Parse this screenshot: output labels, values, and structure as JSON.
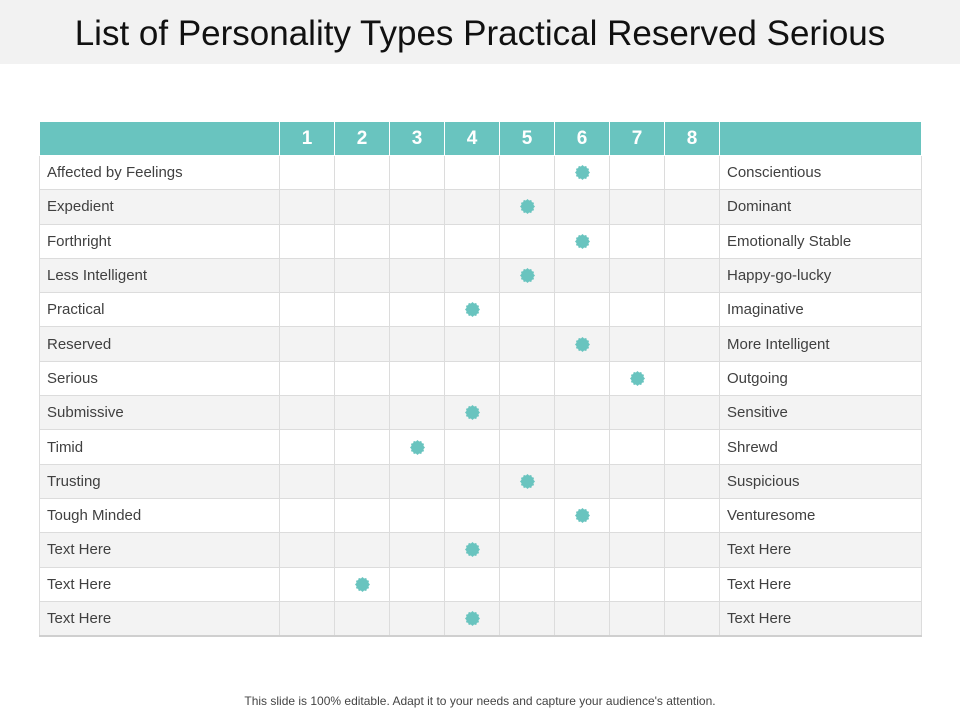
{
  "title": "List of Personality Types Practical Reserved Serious",
  "scale_labels": [
    "1",
    "2",
    "3",
    "4",
    "5",
    "6",
    "7",
    "8"
  ],
  "rows": [
    {
      "left": "Affected by Feelings",
      "right": "Conscientious",
      "score": 6
    },
    {
      "left": "Expedient",
      "right": "Dominant",
      "score": 5
    },
    {
      "left": "Forthright",
      "right": "Emotionally Stable",
      "score": 6
    },
    {
      "left": "Less Intelligent",
      "right": "Happy-go-lucky",
      "score": 5
    },
    {
      "left": "Practical",
      "right": "Imaginative",
      "score": 4
    },
    {
      "left": "Reserved",
      "right": "More Intelligent",
      "score": 6
    },
    {
      "left": "Serious",
      "right": "Outgoing",
      "score": 7
    },
    {
      "left": "Submissive",
      "right": "Sensitive",
      "score": 4
    },
    {
      "left": "Timid",
      "right": "Shrewd",
      "score": 3
    },
    {
      "left": "Trusting",
      "right": "Suspicious",
      "score": 5
    },
    {
      "left": "Tough Minded",
      "right": "Venturesome",
      "score": 6
    },
    {
      "left": "Text Here",
      "right": "Text Here",
      "score": 4
    },
    {
      "left": "Text Here",
      "right": "Text Here",
      "score": 2
    },
    {
      "left": "Text Here",
      "right": "Text Here",
      "score": 4
    }
  ],
  "marker_icon": "badge-dot-icon",
  "accent_color": "#69c4bf",
  "footer": "This slide is 100% editable. Adapt it to your needs and capture your audience's attention."
}
